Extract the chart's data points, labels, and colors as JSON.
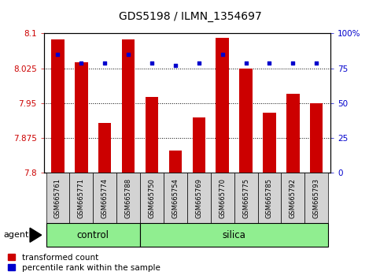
{
  "title": "GDS5198 / ILMN_1354697",
  "samples": [
    "GSM665761",
    "GSM665771",
    "GSM665774",
    "GSM665788",
    "GSM665750",
    "GSM665754",
    "GSM665769",
    "GSM665770",
    "GSM665775",
    "GSM665785",
    "GSM665792",
    "GSM665793"
  ],
  "red_values": [
    8.088,
    8.038,
    7.908,
    8.088,
    7.963,
    7.848,
    7.92,
    8.09,
    8.025,
    7.93,
    7.97,
    7.95
  ],
  "blue_values": [
    85,
    79,
    79,
    85,
    79,
    77,
    79,
    85,
    79,
    79,
    79,
    79
  ],
  "control_count": 4,
  "silica_count": 8,
  "ylim_left": [
    7.8,
    8.1
  ],
  "ylim_right": [
    0,
    100
  ],
  "yticks_left": [
    7.8,
    7.875,
    7.95,
    8.025,
    8.1
  ],
  "yticks_right": [
    0,
    25,
    50,
    75,
    100
  ],
  "ytick_labels_left": [
    "7.8",
    "7.875",
    "7.95",
    "8.025",
    "8.1"
  ],
  "ytick_labels_right": [
    "0",
    "25",
    "50",
    "75",
    "100%"
  ],
  "red_color": "#cc0000",
  "blue_color": "#0000cc",
  "bar_width": 0.55,
  "control_bg": "#90EE90",
  "silica_bg": "#90EE90",
  "label_bg": "#d3d3d3",
  "agent_label": "agent",
  "control_label": "control",
  "silica_label": "silica",
  "legend_red": "transformed count",
  "legend_blue": "percentile rank within the sample"
}
